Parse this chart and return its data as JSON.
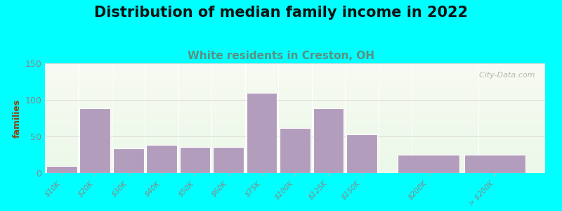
{
  "title": "Distribution of median family income in 2022",
  "subtitle": "White residents in Creston, OH",
  "ylabel": "families",
  "categories": [
    "$10K",
    "$20K",
    "$30K",
    "$40K",
    "$50K",
    "$60K",
    "$75K",
    "$100K",
    "$125K",
    "$150K",
    "$200K",
    "> $200K"
  ],
  "values": [
    10,
    88,
    34,
    38,
    36,
    36,
    110,
    62,
    88,
    53,
    25,
    25
  ],
  "bar_color": "#b39dbd",
  "bar_edgecolor": "#ffffff",
  "background_outer": "#00ffff",
  "title_fontsize": 15,
  "subtitle_fontsize": 11,
  "subtitle_color": "#5a9080",
  "ylabel_color": "#8B4513",
  "tick_color": "#888888",
  "ylim": [
    0,
    150
  ],
  "yticks": [
    0,
    50,
    100,
    150
  ],
  "watermark": "  City-Data.com",
  "watermark_color": "#aaaaaa",
  "bar_positions": [
    0,
    1,
    2,
    3,
    4,
    5,
    6,
    7,
    8,
    9,
    11,
    13
  ],
  "bar_widths": [
    1,
    1,
    1,
    1,
    1,
    1,
    1,
    1,
    1,
    1,
    2,
    2
  ],
  "xlim": [
    -0.5,
    14.5
  ]
}
